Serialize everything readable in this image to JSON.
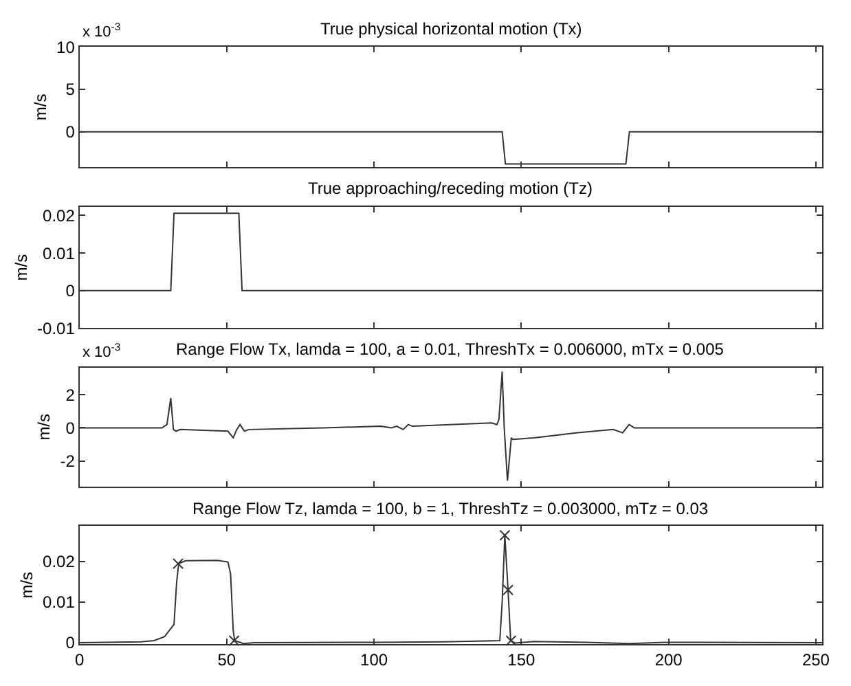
{
  "chart_data": [
    {
      "type": "line",
      "title": "True physical horizontal motion (Tx)",
      "ylabel": "m/s",
      "annotations": [
        "x 10$^{-3}$"
      ],
      "tick_labels": "y",
      "xlim": [
        0,
        252
      ],
      "xticks": [
        0,
        50,
        100,
        150,
        200,
        250
      ],
      "ylim": [
        -4.2,
        10
      ],
      "yticks": [
        0,
        5,
        10
      ],
      "series": [
        {
          "color": "#333333",
          "x": [
            0,
            143.5,
            144.6,
            185.5,
            186.7,
            252
          ],
          "values": [
            0,
            0,
            -3.8,
            -3.8,
            0,
            0
          ]
        }
      ]
    },
    {
      "type": "line",
      "title": "True approaching/receding motion (Tz)",
      "ylabel": "m/s",
      "tick_labels": "y",
      "xlim": [
        0,
        252
      ],
      "xticks": [
        0,
        50,
        100,
        150,
        200,
        250
      ],
      "ylim": [
        -0.01,
        0.0223
      ],
      "yticks": [
        -0.01,
        0,
        0.01,
        0.02
      ],
      "series": [
        {
          "color": "#333333",
          "x": [
            0,
            31,
            32.1,
            54.1,
            55.2,
            252
          ],
          "values": [
            0,
            0,
            0.0206,
            0.0206,
            0,
            0
          ]
        }
      ]
    },
    {
      "type": "line",
      "title": "Range Flow Tx, lamda = 100, a = 0.01, ThreshTx = 0.006000, mTx = 0.005",
      "ylabel": "m/s",
      "annotations": [
        "x 10$^{-3}$"
      ],
      "tick_labels": "y",
      "xlim": [
        0,
        252
      ],
      "xticks": [
        0,
        50,
        100,
        150,
        200,
        250
      ],
      "ylim": [
        -3.55,
        3.65
      ],
      "yticks": [
        -2,
        0,
        2
      ],
      "series": [
        {
          "color": "#333333",
          "x": [
            0,
            28,
            29.7,
            31,
            31.9,
            32.8,
            34.2,
            50.4,
            52.2,
            53.4,
            54.5,
            56,
            57.5,
            82.6,
            102.3,
            105.9,
            107.7,
            109.9,
            111.6,
            113,
            139.9,
            141.7,
            142.4,
            143.5,
            144.2,
            145.3,
            146.6,
            147.1,
            154.3,
            168.6,
            181.2,
            184.4,
            186.6,
            188.4,
            252
          ],
          "values": [
            0,
            0,
            0.2,
            1.8,
            -0.1,
            -0.2,
            -0.1,
            -0.2,
            -0.6,
            -0.1,
            0.2,
            -0.2,
            -0.1,
            0,
            0.1,
            0,
            0.1,
            -0.1,
            0.2,
            0.1,
            0.3,
            0.2,
            0.5,
            3.4,
            0,
            -3.2,
            -0.6,
            -0.7,
            -0.6,
            -0.3,
            -0.1,
            -0.3,
            0.2,
            0,
            0
          ]
        }
      ]
    },
    {
      "type": "line",
      "title": "Range Flow Tz, lamda = 100, b = 1, ThreshTz = 0.003000, mTz = 0.03",
      "ylabel": "m/s",
      "xlim": [
        0,
        252
      ],
      "xticks": [
        0,
        50,
        100,
        150,
        200,
        250
      ],
      "ylim": [
        -0.0004,
        0.0288
      ],
      "yticks": [
        0,
        0.01,
        0.02
      ],
      "series": [
        {
          "color": "#333333",
          "x": [
            0,
            20.8,
            25.3,
            28.9,
            32.1,
            33,
            33.7,
            36,
            46.8,
            50.4,
            51.3,
            52.2,
            52.7,
            55.7,
            59.3,
            100.5,
            123.8,
            142.7,
            143.5,
            144.4,
            145.5,
            146.4,
            148,
            154.3,
            172.2,
            186.6,
            199,
            252
          ],
          "values": [
            0,
            0.0002,
            0.0005,
            0.0015,
            0.0045,
            0.015,
            0.0195,
            0.0202,
            0.0203,
            0.0199,
            0.017,
            0.003,
            0.0005,
            -0.0002,
            0,
            0.0001,
            0.0002,
            0.0005,
            0.01,
            0.0265,
            0.013,
            0.0005,
            -0.0001,
            0.0003,
            0.0001,
            -0.0002,
            0.0001,
            0
          ]
        },
        {
          "type": "scatter",
          "marker": "cross",
          "color": "#333333",
          "x": [
            33.5,
            52.5,
            144.4,
            145.5,
            146.5
          ],
          "values": [
            0.0195,
            0.0005,
            0.0265,
            0.013,
            0.0005
          ]
        }
      ]
    }
  ]
}
